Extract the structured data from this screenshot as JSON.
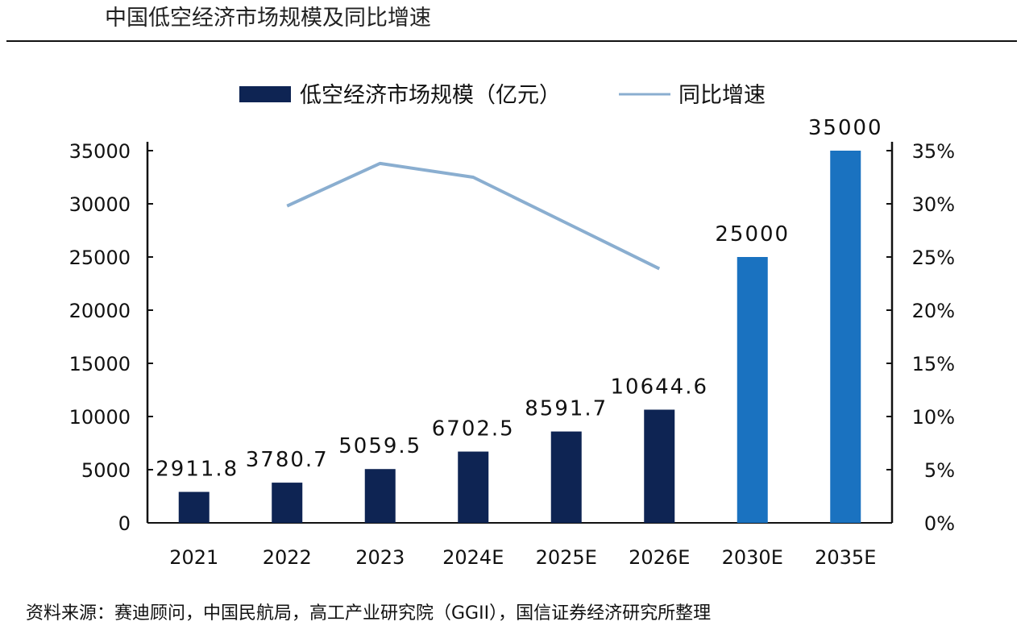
{
  "chart_data": {
    "type": "bar",
    "title": "中国低空经济市场规模及同比增速",
    "categories": [
      "2021",
      "2022",
      "2023",
      "2024E",
      "2025E",
      "2026E",
      "2030E",
      "2035E"
    ],
    "series": [
      {
        "name": "低空经济市场规模（亿元）",
        "type": "bar",
        "axis": "left",
        "values": [
          2911.8,
          3780.7,
          5059.5,
          6702.5,
          8591.7,
          10644.6,
          25000,
          35000
        ],
        "labels": [
          "2911.8",
          "3780.7",
          "5059.5",
          "6702.5",
          "8591.7",
          "10644.6",
          "25000",
          "35000"
        ],
        "colors": [
          "#0e2453",
          "#0e2453",
          "#0e2453",
          "#0e2453",
          "#0e2453",
          "#0e2453",
          "#1a72c0",
          "#1a72c0"
        ]
      },
      {
        "name": "同比增速",
        "type": "line",
        "axis": "right",
        "color": "#8aaed0",
        "values": [
          null,
          29.8,
          33.8,
          32.5,
          28.2,
          23.9,
          null,
          null
        ]
      }
    ],
    "ylim": [
      0,
      35000
    ],
    "yticks": [
      "0",
      "5000",
      "10000",
      "15000",
      "20000",
      "25000",
      "30000",
      "35000"
    ],
    "y2lim": [
      0,
      35
    ],
    "y2ticks": [
      "0%",
      "5%",
      "10%",
      "15%",
      "20%",
      "25%",
      "30%",
      "35%"
    ],
    "legend_position": "top-center",
    "source": "资料来源：赛迪顾问，中国民航局，高工产业研究院（GGII），国信证券经济研究所整理"
  }
}
